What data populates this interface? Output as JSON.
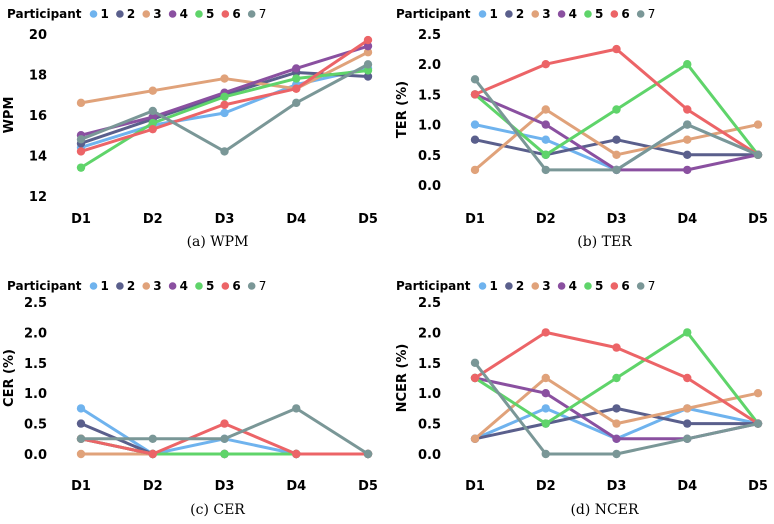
{
  "series_colors": {
    "1": "#6fb3ee",
    "2": "#5a5f8c",
    "3": "#e0a27a",
    "4": "#8a50a0",
    "5": "#5fd46a",
    "6": "#ec6467",
    "7": "#7a9797"
  },
  "chart_data": [
    {
      "id": "wpm",
      "type": "line",
      "caption": "(a) WPM",
      "legend_title": "Participant",
      "legend_placement": "top",
      "ylabel": "WPM",
      "categories": [
        "D1",
        "D2",
        "D3",
        "D4",
        "D5"
      ],
      "ylim": [
        12,
        20
      ],
      "yticks": [
        12,
        14,
        16,
        18,
        20
      ],
      "ytick_labels": [
        "12",
        "14",
        "16",
        "18",
        "20"
      ],
      "grid": false,
      "series": [
        {
          "name": "1",
          "values": [
            14.4,
            15.5,
            16.1,
            17.5,
            18.3
          ]
        },
        {
          "name": "2",
          "values": [
            14.6,
            15.8,
            17.0,
            18.1,
            17.9
          ]
        },
        {
          "name": "3",
          "values": [
            16.6,
            17.2,
            17.8,
            17.3,
            19.1
          ]
        },
        {
          "name": "4",
          "values": [
            15.0,
            15.9,
            17.1,
            18.3,
            19.4
          ]
        },
        {
          "name": "5",
          "values": [
            13.4,
            15.6,
            16.9,
            17.8,
            18.2
          ]
        },
        {
          "name": "6",
          "values": [
            14.2,
            15.3,
            16.5,
            17.3,
            19.7
          ]
        },
        {
          "name": "7",
          "values": [
            14.8,
            16.2,
            14.2,
            16.6,
            18.5
          ]
        }
      ]
    },
    {
      "id": "ter",
      "type": "line",
      "caption": "(b) TER",
      "legend_title": "Participant",
      "legend_placement": "top",
      "ylabel": "TER (%)",
      "categories": [
        "D1",
        "D2",
        "D3",
        "D4",
        "D5"
      ],
      "ylim": [
        0,
        2.5
      ],
      "yticks": [
        0,
        0.5,
        1,
        1.5,
        2,
        2.5
      ],
      "ytick_labels": [
        "0.0",
        "0.5",
        "1.0",
        "1.5",
        "2.0",
        "2.5"
      ],
      "grid": false,
      "series": [
        {
          "name": "1",
          "values": [
            1.0,
            0.75,
            0.25,
            1.0,
            0.5
          ]
        },
        {
          "name": "2",
          "values": [
            0.75,
            0.5,
            0.75,
            0.5,
            0.5
          ]
        },
        {
          "name": "3",
          "values": [
            0.25,
            1.25,
            0.5,
            0.75,
            1.0
          ]
        },
        {
          "name": "4",
          "values": [
            1.5,
            1.0,
            0.25,
            0.25,
            0.5
          ]
        },
        {
          "name": "5",
          "values": [
            1.5,
            0.5,
            1.25,
            2.0,
            0.5
          ]
        },
        {
          "name": "6",
          "values": [
            1.5,
            2.0,
            2.25,
            1.25,
            0.5
          ]
        },
        {
          "name": "7",
          "values": [
            1.75,
            0.25,
            0.25,
            1.0,
            0.5
          ]
        }
      ]
    },
    {
      "id": "cer",
      "type": "line",
      "caption": "(c) CER",
      "legend_title": "Participant",
      "legend_placement": "top",
      "ylabel": "CER (%)",
      "categories": [
        "D1",
        "D2",
        "D3",
        "D4",
        "D5"
      ],
      "ylim": [
        0,
        2.5
      ],
      "yticks": [
        0,
        0.5,
        1,
        1.5,
        2,
        2.5
      ],
      "ytick_labels": [
        "0.0",
        "0.5",
        "1.0",
        "1.5",
        "2.0",
        "2.5"
      ],
      "grid": false,
      "series": [
        {
          "name": "1",
          "values": [
            0.75,
            0.0,
            0.25,
            0.0,
            0.0
          ]
        },
        {
          "name": "2",
          "values": [
            0.5,
            0.0,
            0.0,
            0.0,
            0.0
          ]
        },
        {
          "name": "3",
          "values": [
            0.0,
            0.0,
            0.0,
            0.0,
            0.0
          ]
        },
        {
          "name": "4",
          "values": [
            0.25,
            0.0,
            0.0,
            0.0,
            0.0
          ]
        },
        {
          "name": "5",
          "values": [
            0.25,
            0.0,
            0.0,
            0.0,
            0.0
          ]
        },
        {
          "name": "6",
          "values": [
            0.25,
            0.0,
            0.5,
            0.0,
            0.0
          ]
        },
        {
          "name": "7",
          "values": [
            0.25,
            0.25,
            0.25,
            0.75,
            0.0
          ]
        }
      ]
    },
    {
      "id": "ncer",
      "type": "line",
      "caption": "(d) NCER",
      "legend_title": "Participant",
      "legend_placement": "top",
      "ylabel": "NCER (%)",
      "categories": [
        "D1",
        "D2",
        "D3",
        "D4",
        "D5"
      ],
      "ylim": [
        0,
        2.5
      ],
      "yticks": [
        0,
        0.5,
        1,
        1.5,
        2,
        2.5
      ],
      "ytick_labels": [
        "0.0",
        "0.5",
        "1.0",
        "1.5",
        "2.0",
        "2.5"
      ],
      "grid": false,
      "series": [
        {
          "name": "1",
          "values": [
            0.25,
            0.75,
            0.25,
            0.75,
            0.5
          ]
        },
        {
          "name": "2",
          "values": [
            0.25,
            0.5,
            0.75,
            0.5,
            0.5
          ]
        },
        {
          "name": "3",
          "values": [
            0.25,
            1.25,
            0.5,
            0.75,
            1.0
          ]
        },
        {
          "name": "4",
          "values": [
            1.25,
            1.0,
            0.25,
            0.25,
            0.5
          ]
        },
        {
          "name": "5",
          "values": [
            1.25,
            0.5,
            1.25,
            2.0,
            0.5
          ]
        },
        {
          "name": "6",
          "values": [
            1.25,
            2.0,
            1.75,
            1.25,
            0.5
          ]
        },
        {
          "name": "7",
          "values": [
            1.5,
            0.0,
            0.0,
            0.25,
            0.5
          ]
        }
      ]
    }
  ]
}
